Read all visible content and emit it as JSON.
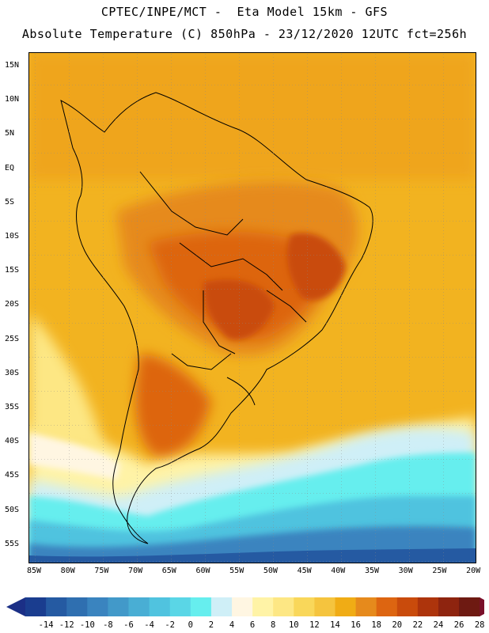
{
  "header": {
    "line1": "CPTEC/INPE/MCT -  Eta Model 15km - GFS",
    "line2": "Absolute Temperature (C) 850hPa - 23/12/2020 12UTC fct=256h"
  },
  "map": {
    "lat_labels": [
      "15N",
      "10N",
      "5N",
      "EQ",
      "5S",
      "10S",
      "15S",
      "20S",
      "25S",
      "30S",
      "35S",
      "40S",
      "45S",
      "50S",
      "55S"
    ],
    "lon_labels": [
      "85W",
      "80W",
      "75W",
      "70W",
      "65W",
      "60W",
      "55W",
      "50W",
      "45W",
      "40W",
      "35W",
      "30W",
      "25W",
      "20W"
    ]
  },
  "colorbar": {
    "labels": [
      "-14",
      "-12",
      "-10",
      "-8",
      "-6",
      "-4",
      "-2",
      "0",
      "2",
      "4",
      "6",
      "8",
      "10",
      "12",
      "14",
      "16",
      "18",
      "20",
      "22",
      "24",
      "26",
      "28"
    ],
    "colors": [
      "#1a3d8f",
      "#255aa2",
      "#2f6fb0",
      "#3a84bf",
      "#4299c9",
      "#49aed4",
      "#50c3df",
      "#5ad6e6",
      "#66eeee",
      "#cfeff7",
      "#fff6e2",
      "#fff3a6",
      "#fde784",
      "#f9d75a",
      "#f5c43e",
      "#f0ac15",
      "#e68a1c",
      "#dd6511",
      "#c94b0c",
      "#ad340c",
      "#8e240f",
      "#6e1a12"
    ],
    "min_color": "#1b2f86",
    "max_color": "#7a0f2a"
  }
}
